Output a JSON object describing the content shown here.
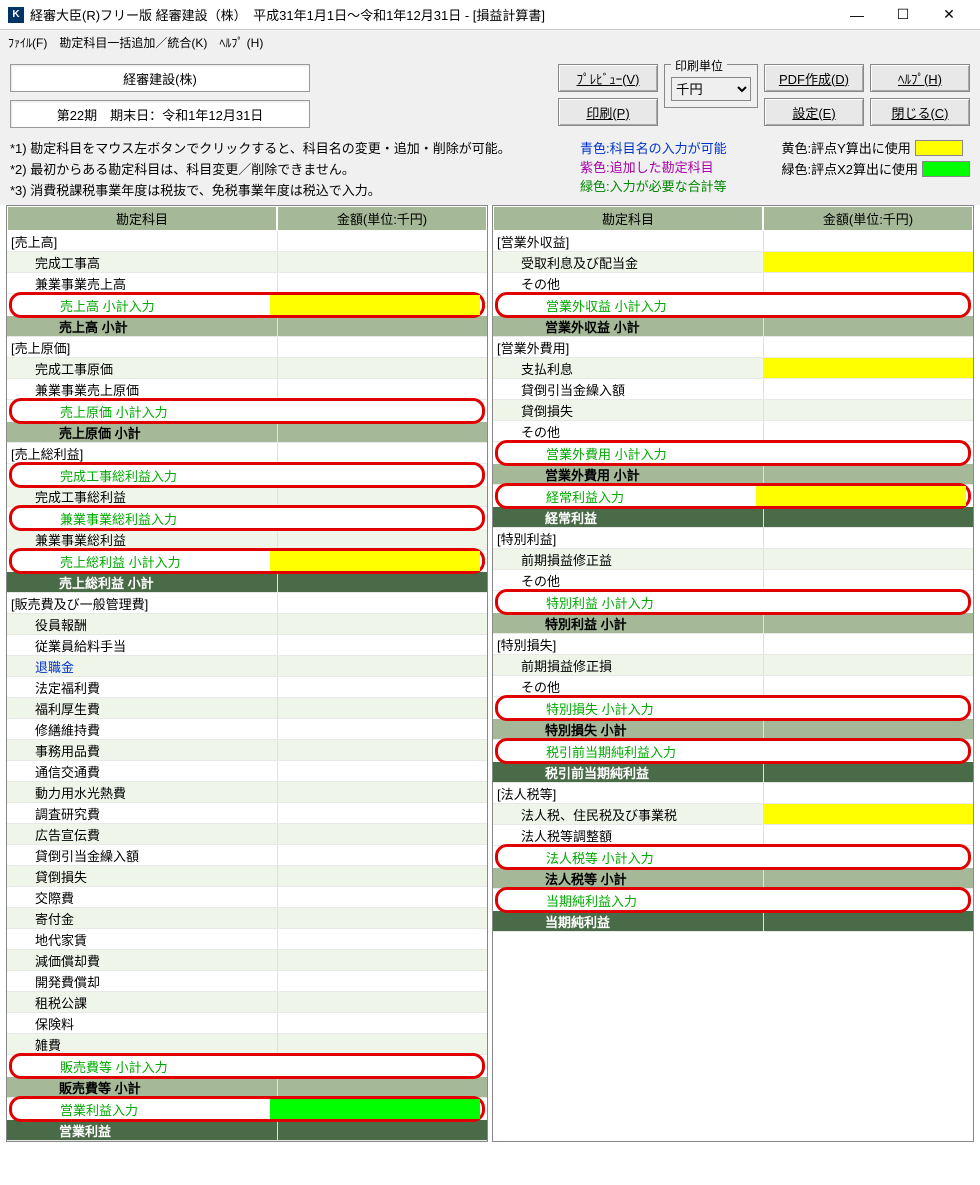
{
  "window": {
    "title": "経審大臣(R)フリー版  経審建設（株）　平成31年1月1日～令和1年12月31日 - [損益計算書]",
    "icon_letter": "K"
  },
  "menu": {
    "file": "ﾌｧｲﾙ(F)",
    "account": "勘定科目一括追加／統合(K)",
    "help": "ﾍﾙﾌﾟ (H)"
  },
  "info": {
    "company": "経審建設(株)",
    "period": "第22期　期末日：令和1年12月31日"
  },
  "buttons": {
    "preview": "ﾌﾟﾚﾋﾞｭｰ(V)",
    "print": "印刷(P)",
    "pdf": "PDF作成(D)",
    "settings": "設定(E)",
    "help": "ﾍﾙﾌﾟ(H)",
    "close": "閉じる(C)"
  },
  "printunit": {
    "legend": "印刷単位",
    "value": "千円"
  },
  "notes": {
    "n1": "*1) 勘定科目をマウス左ボタンでクリックすると、科目名の変更・追加・削除が可能。",
    "n2": "*2) 最初からある勘定科目は、科目変更／削除できません。",
    "n3": "*3) 消費税課税事業年度は税抜で、免税事業年度は税込で入力。",
    "blue": "青色:科目名の入力が可能",
    "purple": "紫色:追加した勘定科目",
    "green": "緑色:入力が必要な合計等",
    "yellow_legend": "黄色:評点Y算出に使用",
    "green_legend": "緑色:評点X2算出に使用"
  },
  "headers": {
    "account": "勘定科目",
    "amount": "金額(単位:千円)"
  },
  "left": [
    {
      "t": "cat",
      "label": "[売上高]"
    },
    {
      "t": "item",
      "label": "完成工事高"
    },
    {
      "t": "itemw",
      "label": "兼業事業売上高"
    },
    {
      "t": "hl",
      "label": "売上高  小計入力",
      "yellow": true
    },
    {
      "t": "sub",
      "label": "売上高  小計"
    },
    {
      "t": "cat",
      "label": "[売上原価]"
    },
    {
      "t": "item",
      "label": "完成工事原価"
    },
    {
      "t": "itemw",
      "label": "兼業事業売上原価"
    },
    {
      "t": "hl",
      "label": "売上原価  小計入力"
    },
    {
      "t": "sub",
      "label": "売上原価  小計"
    },
    {
      "t": "cat",
      "label": "[売上総利益]"
    },
    {
      "t": "hl",
      "label": "完成工事総利益入力"
    },
    {
      "t": "item",
      "label": "完成工事総利益"
    },
    {
      "t": "hl",
      "label": "兼業事業総利益入力"
    },
    {
      "t": "item",
      "label": "兼業事業総利益"
    },
    {
      "t": "hl",
      "label": "売上総利益  小計入力",
      "yellow": true
    },
    {
      "t": "total",
      "label": "売上総利益  小計"
    },
    {
      "t": "cat",
      "label": "[販売費及び一般管理費]"
    },
    {
      "t": "item",
      "label": "役員報酬"
    },
    {
      "t": "itemw",
      "label": "従業員給料手当"
    },
    {
      "t": "item",
      "label": "退職金",
      "blue": true
    },
    {
      "t": "itemw",
      "label": "法定福利費"
    },
    {
      "t": "item",
      "label": "福利厚生費"
    },
    {
      "t": "itemw",
      "label": "修繕維持費"
    },
    {
      "t": "item",
      "label": "事務用品費"
    },
    {
      "t": "itemw",
      "label": "通信交通費"
    },
    {
      "t": "item",
      "label": "動力用水光熱費"
    },
    {
      "t": "itemw",
      "label": "調査研究費"
    },
    {
      "t": "item",
      "label": "広告宣伝費"
    },
    {
      "t": "itemw",
      "label": "貸倒引当金繰入額"
    },
    {
      "t": "item",
      "label": "貸倒損失"
    },
    {
      "t": "itemw",
      "label": "交際費"
    },
    {
      "t": "item",
      "label": "寄付金"
    },
    {
      "t": "itemw",
      "label": "地代家賃"
    },
    {
      "t": "item",
      "label": "減価償却費"
    },
    {
      "t": "itemw",
      "label": "開発費償却"
    },
    {
      "t": "item",
      "label": "租税公課"
    },
    {
      "t": "itemw",
      "label": "保険料"
    },
    {
      "t": "item",
      "label": "雑費"
    },
    {
      "t": "hl",
      "label": "販売費等  小計入力"
    },
    {
      "t": "sub",
      "label": "販売費等  小計"
    },
    {
      "t": "hl",
      "label": "営業利益入力",
      "green": true
    },
    {
      "t": "total",
      "label": "営業利益"
    }
  ],
  "right": [
    {
      "t": "cat",
      "label": "[営業外収益]"
    },
    {
      "t": "item",
      "label": "受取利息及び配当金",
      "ybg": true
    },
    {
      "t": "itemw",
      "label": "その他"
    },
    {
      "t": "hl",
      "label": "営業外収益  小計入力"
    },
    {
      "t": "sub",
      "label": "営業外収益  小計"
    },
    {
      "t": "cat",
      "label": "[営業外費用]"
    },
    {
      "t": "item",
      "label": "支払利息",
      "ybg": true
    },
    {
      "t": "itemw",
      "label": "貸倒引当金繰入額"
    },
    {
      "t": "item",
      "label": "貸倒損失"
    },
    {
      "t": "itemw",
      "label": "その他"
    },
    {
      "t": "hl",
      "label": "営業外費用  小計入力"
    },
    {
      "t": "sub",
      "label": "営業外費用  小計"
    },
    {
      "t": "hl",
      "label": "経常利益入力",
      "yellow": true
    },
    {
      "t": "total",
      "label": "経常利益"
    },
    {
      "t": "cat",
      "label": "[特別利益]"
    },
    {
      "t": "item",
      "label": "前期損益修正益"
    },
    {
      "t": "itemw",
      "label": "その他"
    },
    {
      "t": "hl",
      "label": "特別利益  小計入力"
    },
    {
      "t": "sub",
      "label": "特別利益  小計"
    },
    {
      "t": "cat",
      "label": "[特別損失]"
    },
    {
      "t": "item",
      "label": "前期損益修正損"
    },
    {
      "t": "itemw",
      "label": "その他"
    },
    {
      "t": "hl",
      "label": "特別損失  小計入力"
    },
    {
      "t": "sub",
      "label": "特別損失  小計"
    },
    {
      "t": "hl",
      "label": "税引前当期純利益入力"
    },
    {
      "t": "total",
      "label": "税引前当期純利益"
    },
    {
      "t": "cat",
      "label": "[法人税等]"
    },
    {
      "t": "item",
      "label": "法人税、住民税及び事業税",
      "ybg": true
    },
    {
      "t": "itemw",
      "label": "法人税等調整額"
    },
    {
      "t": "hl",
      "label": "法人税等  小計入力"
    },
    {
      "t": "sub",
      "label": "法人税等  小計"
    },
    {
      "t": "hl",
      "label": "当期純利益入力"
    },
    {
      "t": "total",
      "label": "当期純利益"
    }
  ]
}
